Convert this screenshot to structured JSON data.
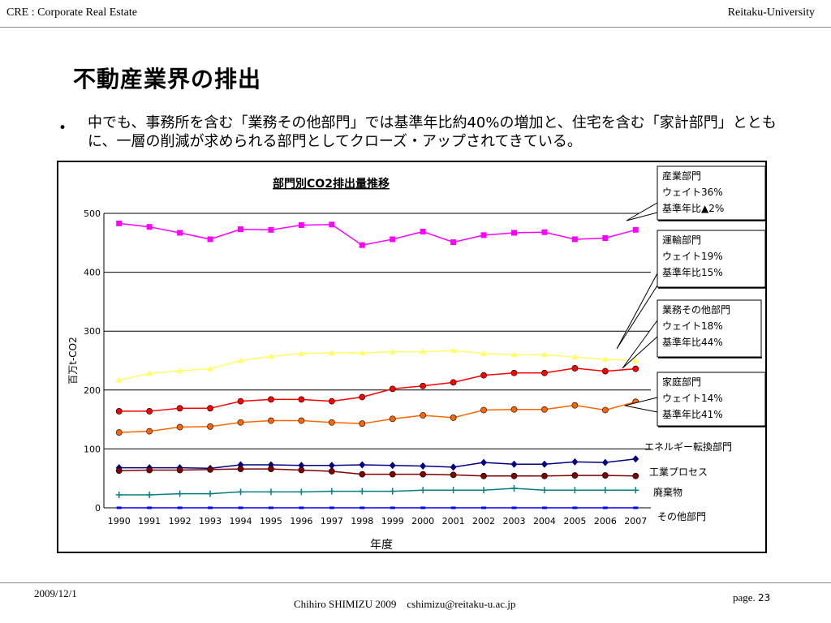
{
  "header": {
    "left": "CRE : Corporate Real Estate",
    "right": "Reitaku-University"
  },
  "title": "不動産業界の排出",
  "bullet": {
    "symbol": "•",
    "text": "中でも、事務所を含む「業務その他部門」では基準年比約40%の増加と、住宅を含む「家計部門」とともに、一層の削減が求められる部門としてクローズ・アップされてきている。"
  },
  "chart_data": {
    "type": "line",
    "title": "部門別CO2排出量推移",
    "xlabel": "年度",
    "ylabel": "百万t-CO2",
    "ylim": [
      0,
      500
    ],
    "yticks": [
      0,
      100,
      200,
      300,
      400,
      500
    ],
    "grid": true,
    "x": [
      "1990",
      "1991",
      "1992",
      "1993",
      "1994",
      "1995",
      "1996",
      "1997",
      "1998",
      "1999",
      "2000",
      "2001",
      "2002",
      "2003",
      "2004",
      "2005",
      "2006",
      "2007"
    ],
    "series": [
      {
        "name": "産業部門",
        "color": "#ff00ff",
        "marker": "square",
        "values": [
          483,
          477,
          467,
          456,
          473,
          472,
          480,
          481,
          446,
          456,
          469,
          451,
          463,
          467,
          468,
          456,
          458,
          472
        ]
      },
      {
        "name": "運輸部門",
        "color": "#ffff66",
        "marker": "triangle",
        "values": [
          217,
          228,
          233,
          236,
          250,
          257,
          262,
          263,
          263,
          265,
          265,
          267,
          262,
          260,
          260,
          256,
          252,
          250
        ]
      },
      {
        "name": "業務その他部門",
        "color": "#ff0000",
        "marker": "circle",
        "values": [
          164,
          164,
          169,
          169,
          181,
          184,
          184,
          181,
          188,
          202,
          207,
          213,
          225,
          229,
          229,
          237,
          232,
          236
        ]
      },
      {
        "name": "家庭部門",
        "color": "#ff6600",
        "marker": "circle",
        "values": [
          128,
          130,
          137,
          138,
          145,
          148,
          148,
          145,
          143,
          151,
          157,
          153,
          166,
          167,
          167,
          174,
          166,
          180
        ]
      },
      {
        "name": "エネルギー転換部門",
        "color": "#000080",
        "marker": "diamond",
        "values": [
          68,
          68,
          68,
          67,
          73,
          73,
          72,
          72,
          73,
          72,
          71,
          69,
          77,
          74,
          74,
          78,
          77,
          83
        ]
      },
      {
        "name": "工業プロセス",
        "color": "#800000",
        "marker": "circle",
        "values": [
          63,
          64,
          64,
          65,
          66,
          66,
          64,
          62,
          57,
          57,
          57,
          56,
          54,
          54,
          54,
          55,
          55,
          54
        ]
      },
      {
        "name": "廃棄物",
        "color": "#008080",
        "marker": "plus",
        "values": [
          22,
          22,
          24,
          24,
          27,
          27,
          27,
          28,
          28,
          28,
          30,
          30,
          30,
          33,
          30,
          30,
          30,
          30
        ]
      },
      {
        "name": "その他部門",
        "color": "#0000ff",
        "marker": "dash",
        "values": [
          0,
          0,
          0,
          0,
          0,
          0,
          0,
          0,
          0,
          0,
          0,
          0,
          0,
          0,
          0,
          0,
          0,
          0
        ]
      }
    ],
    "callouts": [
      {
        "series": "産業部門",
        "lines": [
          "産業部門",
          "ウェイト36%",
          "基準年比▲2%"
        ]
      },
      {
        "series": "運輸部門",
        "lines": [
          "運輸部門",
          "ウェイト19%",
          "基準年比15%"
        ]
      },
      {
        "series": "業務その他部門",
        "lines": [
          "業務その他部門",
          "ウェイト18%",
          "基準年比44%"
        ]
      },
      {
        "series": "家庭部門",
        "lines": [
          "家庭部門",
          "ウェイト14%",
          "基準年比41%"
        ]
      }
    ],
    "series_labels": [
      "エネルギー転換部門",
      "工業プロセス",
      "廃棄物",
      "その他部門"
    ]
  },
  "footer": {
    "date": "2009/12/1",
    "author": "Chihiro SHIMIZU 2009　cshimizu@reitaku-u.ac.jp",
    "page_label": "page.",
    "page_number": "23"
  }
}
